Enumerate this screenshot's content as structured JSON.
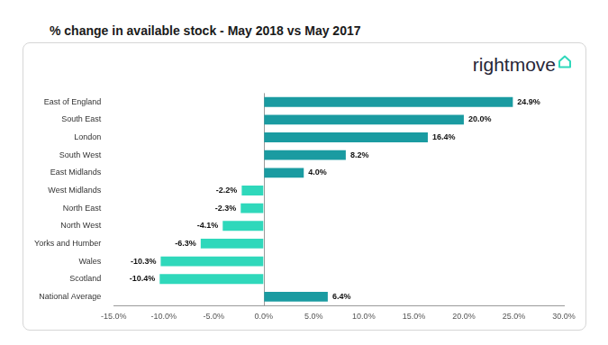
{
  "chart_data": {
    "type": "bar",
    "title": "% change in available stock - May 2018 vs May 2017",
    "annotations": [
      "rightmove"
    ],
    "orientation": "horizontal",
    "categories": [
      "East of England",
      "South East",
      "London",
      "South West",
      "East Midlands",
      "West Midlands",
      "North East",
      "North West",
      "Yorks and Humber",
      "Wales",
      "Scotland",
      "National Average"
    ],
    "values": [
      24.9,
      20.0,
      16.4,
      8.2,
      4.0,
      -2.2,
      -2.3,
      -4.1,
      -6.3,
      -10.3,
      -10.4,
      6.4
    ],
    "value_labels": [
      "24.9%",
      "20.0%",
      "16.4%",
      "8.2%",
      "4.0%",
      "-2.2%",
      "-2.3%",
      "-4.1%",
      "-6.3%",
      "-10.3%",
      "-10.4%",
      "6.4%"
    ],
    "colors": [
      "#1a9ba1",
      "#1a9ba1",
      "#1a9ba1",
      "#1a9ba1",
      "#1a9ba1",
      "#2fd8bb",
      "#2fd8bb",
      "#2fd8bb",
      "#2fd8bb",
      "#2fd8bb",
      "#2fd8bb",
      "#1a9ba1"
    ],
    "data_labels": true,
    "xlim": [
      -15,
      30
    ],
    "xticks": [
      {
        "value": -15,
        "label": "-15.0%"
      },
      {
        "value": -10,
        "label": "-10.0%"
      },
      {
        "value": -5,
        "label": "-5.0%"
      },
      {
        "value": 0,
        "label": "0.0%"
      },
      {
        "value": 5,
        "label": "5.0%"
      },
      {
        "value": 10,
        "label": "10.0%"
      },
      {
        "value": 15,
        "label": "15.0%"
      },
      {
        "value": 20,
        "label": "20.0%"
      },
      {
        "value": 25,
        "label": "25.0%"
      },
      {
        "value": 30,
        "label": "30.0%"
      }
    ],
    "grid": false
  }
}
